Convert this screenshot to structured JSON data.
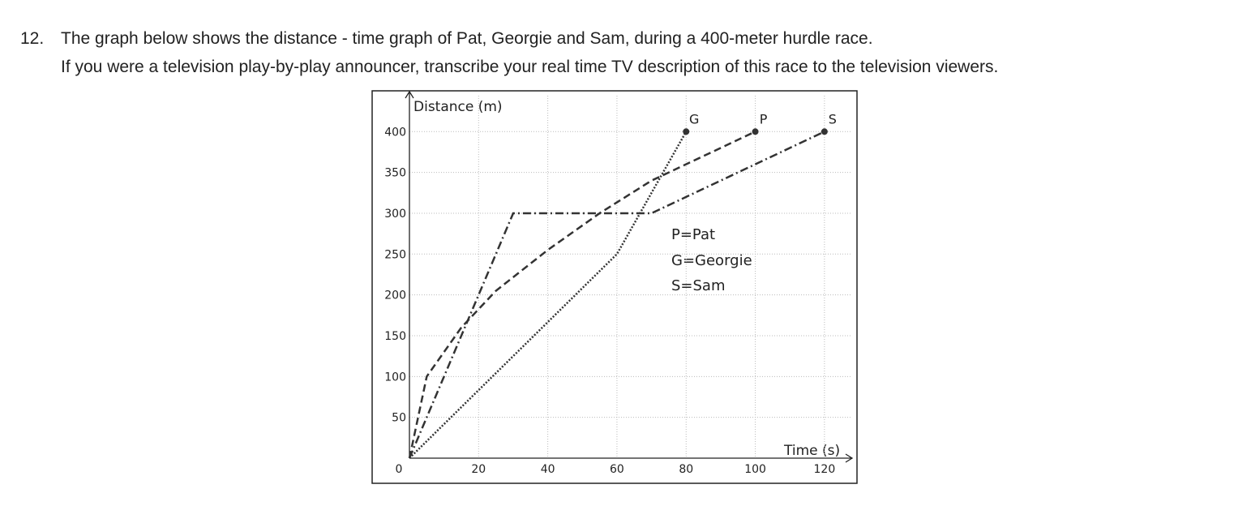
{
  "question": {
    "number": "12.",
    "line1": "The graph below shows the distance - time graph of Pat, Georgie and Sam, during a 400-meter hurdle race.",
    "line2": "If you were a television play-by-play announcer, transcribe your real time TV description of this race to the television viewers."
  },
  "chart_data": {
    "type": "line",
    "y_label": "Distance (m)",
    "x_label": "Time (s)",
    "xlim": [
      0,
      128
    ],
    "ylim": [
      0,
      444
    ],
    "xticks": [
      0,
      20,
      40,
      60,
      80,
      100,
      120
    ],
    "yticks": [
      50,
      100,
      150,
      200,
      250,
      300,
      350,
      400
    ],
    "grid": true,
    "annotations": [
      "P=Pat",
      "G=Georgie",
      "S=Sam"
    ],
    "series": [
      {
        "name": "G",
        "color": "#333333",
        "style": "dotted",
        "x": [
          0,
          60,
          80
        ],
        "y": [
          0,
          250,
          400
        ]
      },
      {
        "name": "P",
        "color": "#333333",
        "style": "dashed",
        "x": [
          0,
          5,
          15,
          25,
          40,
          55,
          70,
          100
        ],
        "y": [
          0,
          100,
          160,
          205,
          255,
          300,
          340,
          400
        ]
      },
      {
        "name": "S",
        "color": "#333333",
        "style": "dashdot",
        "x": [
          0,
          30,
          70,
          120
        ],
        "y": [
          0,
          300,
          300,
          400
        ]
      }
    ]
  }
}
